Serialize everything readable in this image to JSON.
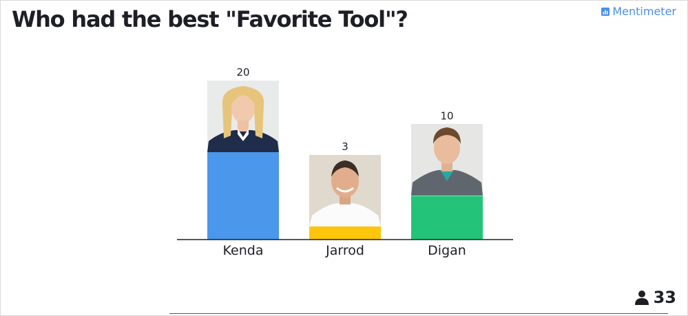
{
  "header": {
    "title": "Who had the best \"Favorite Tool\"?",
    "brand": "Mentimeter"
  },
  "footer": {
    "participant_count": "33",
    "person_icon": "person-icon"
  },
  "colors": {
    "kenda": "#4a97ec",
    "jarrod": "#fdc50c",
    "digan": "#24c37a",
    "brand": "#4a8fe7",
    "text": "#1e1f26"
  },
  "chart_data": {
    "type": "bar",
    "title": "",
    "xlabel": "",
    "ylabel": "",
    "categories": [
      "Kenda",
      "Jarrod",
      "Digan"
    ],
    "values": [
      20,
      3,
      10
    ],
    "value_labels": [
      "20",
      "3",
      "10"
    ],
    "ylim": [
      0,
      20
    ],
    "grid": false,
    "legend": "none"
  }
}
